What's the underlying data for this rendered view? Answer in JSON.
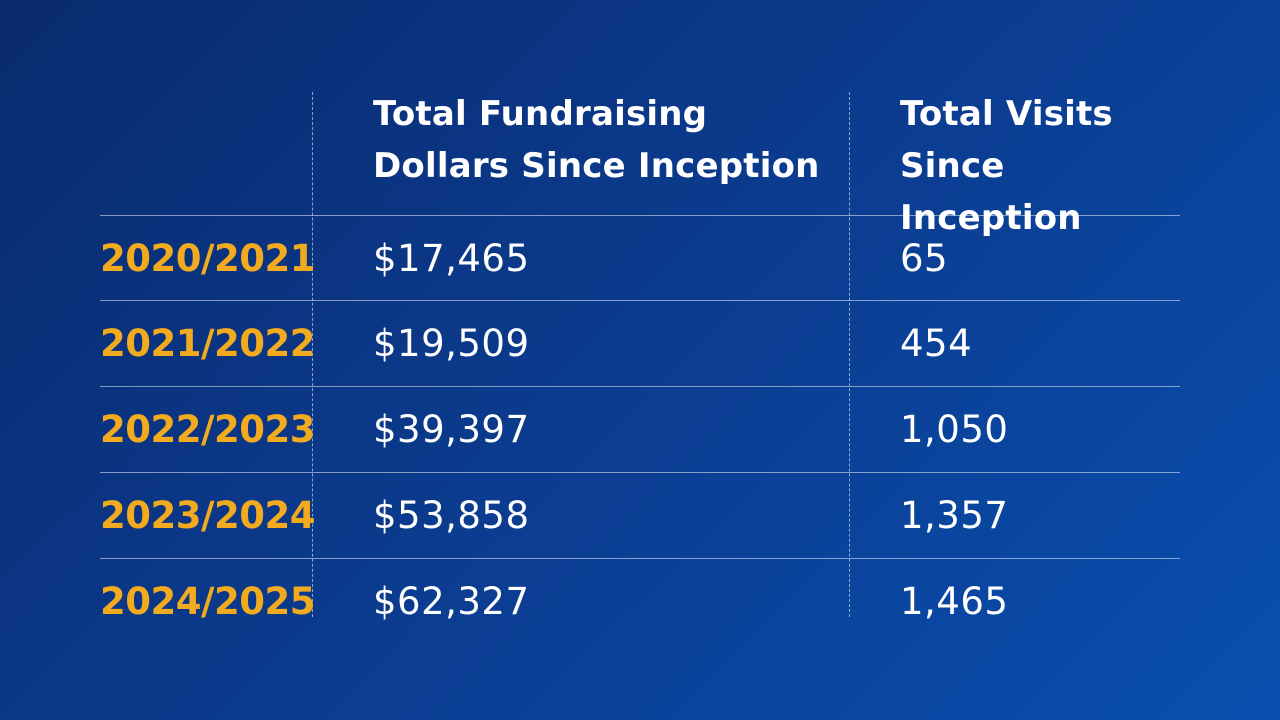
{
  "table": {
    "headers": [
      "",
      "Total Fundraising Dollars Since Inception",
      "Total Visits Since Inception"
    ],
    "header_lines": {
      "dollars": [
        "Total Fundraising",
        "Dollars Since Inception"
      ],
      "visits": [
        "Total Visits",
        "Since Inception"
      ]
    },
    "rows": [
      {
        "year": "2020/2021",
        "dollars": "$17,465",
        "visits": "65"
      },
      {
        "year": "2021/2022",
        "dollars": "$19,509",
        "visits": "454"
      },
      {
        "year": "2022/2023",
        "dollars": "$39,397",
        "visits": "1,050"
      },
      {
        "year": "2023/2024",
        "dollars": "$53,858",
        "visits": "1,357"
      },
      {
        "year": "2024/2025",
        "dollars": "$62,327",
        "visits": "1,465"
      }
    ]
  },
  "colors": {
    "background_start": "#0a2a6e",
    "background_end": "#0a4fb0",
    "year_text": "#f2aa1f",
    "body_text": "#ffffff"
  },
  "chart_data": {
    "type": "table",
    "columns": [
      "",
      "Total Fundraising Dollars Since Inception",
      "Total Visits Since Inception"
    ],
    "categories": [
      "2020/2021",
      "2021/2022",
      "2022/2023",
      "2023/2024",
      "2024/2025"
    ],
    "series": [
      {
        "name": "Total Fundraising Dollars Since Inception",
        "values": [
          17465,
          19509,
          39397,
          53858,
          62327
        ]
      },
      {
        "name": "Total Visits Since Inception",
        "values": [
          65,
          454,
          1050,
          1357,
          1465
        ]
      }
    ]
  }
}
